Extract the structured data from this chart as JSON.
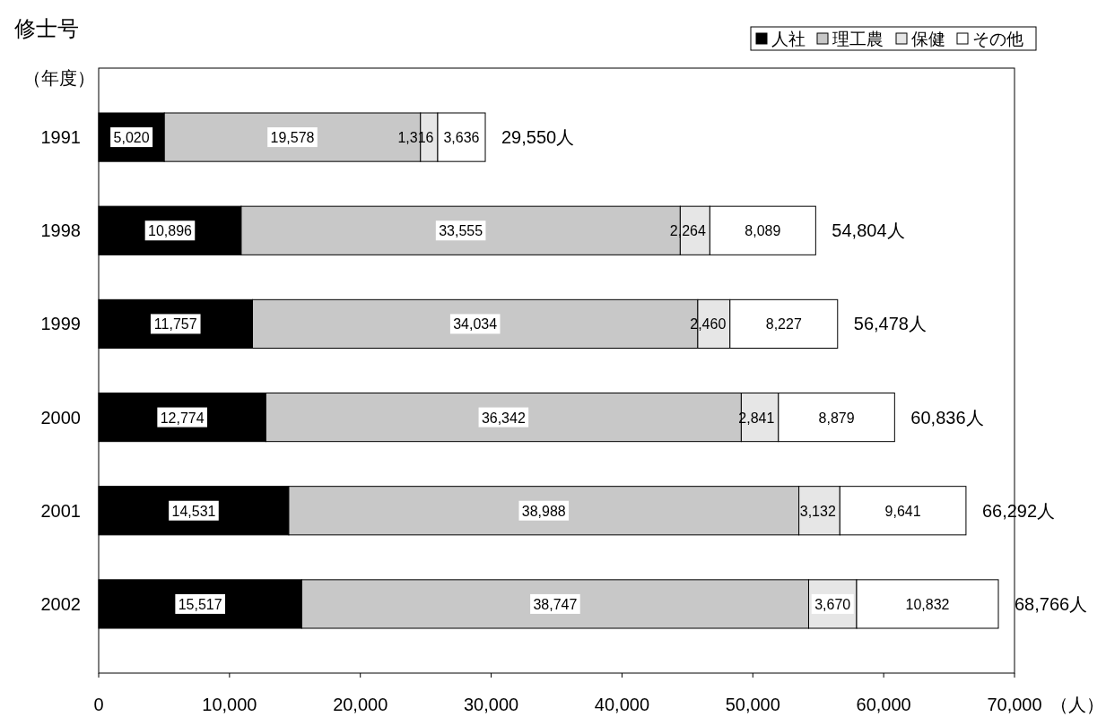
{
  "chart_data": {
    "type": "bar",
    "orientation": "horizontal",
    "stacked": true,
    "title": "修士号",
    "ylabel": "（年度）",
    "xlabel": "（人）",
    "categories": [
      "1991",
      "1998",
      "1999",
      "2000",
      "2001",
      "2002"
    ],
    "series": [
      {
        "name": "人社",
        "color": "#000000",
        "values": [
          5020,
          10896,
          11757,
          12774,
          14531,
          15517
        ],
        "value_labels": [
          "5,020",
          "10,896",
          "11,757",
          "12,774",
          "14,531",
          "15,517"
        ]
      },
      {
        "name": "理工農",
        "color": "#c8c8c8",
        "values": [
          19578,
          33555,
          34034,
          36342,
          38988,
          38747
        ],
        "value_labels": [
          "19,578",
          "33,555",
          "34,034",
          "36,342",
          "38,988",
          "38,747"
        ]
      },
      {
        "name": "保健",
        "color": "#e6e6e6",
        "values": [
          1316,
          2264,
          2460,
          2841,
          3132,
          3670
        ],
        "value_labels": [
          "1,316",
          "2,264",
          "2,460",
          "2,841",
          "3,132",
          "3,670"
        ]
      },
      {
        "name": "その他",
        "color": "#ffffff",
        "values": [
          3636,
          8089,
          8227,
          8879,
          9641,
          10832
        ],
        "value_labels": [
          "3,636",
          "8,089",
          "8,227",
          "8,879",
          "9,641",
          "10,832"
        ]
      }
    ],
    "totals": [
      "29,550人",
      "54,804人",
      "56,478人",
      "60,836人",
      "66,292人",
      "68,766人"
    ],
    "legend": "top right",
    "grid": false,
    "xlim": [
      0,
      70000
    ],
    "xticks": [
      {
        "value": 0,
        "label": "0"
      },
      {
        "value": 10000,
        "label": "10,000"
      },
      {
        "value": 20000,
        "label": "20,000"
      },
      {
        "value": 30000,
        "label": "30,000"
      },
      {
        "value": 40000,
        "label": "40,000"
      },
      {
        "value": 50000,
        "label": "50,000"
      },
      {
        "value": 60000,
        "label": "60,000"
      },
      {
        "value": 70000,
        "label": "70,000"
      }
    ]
  }
}
